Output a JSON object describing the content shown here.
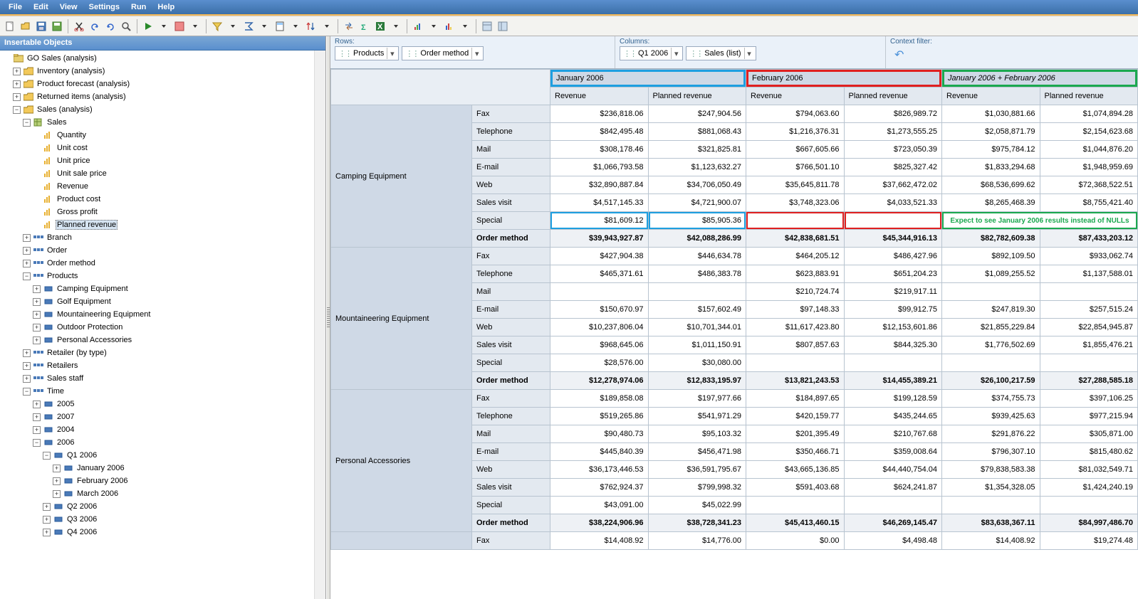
{
  "menu": [
    "File",
    "Edit",
    "View",
    "Settings",
    "Run",
    "Help"
  ],
  "left_panel_title": "Insertable Objects",
  "tree": [
    {
      "d": 0,
      "exp": "",
      "icon": "pkg",
      "label": "GO Sales (analysis)"
    },
    {
      "d": 1,
      "exp": "+",
      "icon": "folder",
      "label": "Inventory (analysis)"
    },
    {
      "d": 1,
      "exp": "+",
      "icon": "folder",
      "label": "Product forecast (analysis)"
    },
    {
      "d": 1,
      "exp": "+",
      "icon": "folder",
      "label": "Returned items (analysis)"
    },
    {
      "d": 1,
      "exp": "-",
      "icon": "folder",
      "label": "Sales (analysis)"
    },
    {
      "d": 2,
      "exp": "-",
      "icon": "cube",
      "label": "Sales"
    },
    {
      "d": 3,
      "exp": "",
      "icon": "measure",
      "label": "Quantity"
    },
    {
      "d": 3,
      "exp": "",
      "icon": "measure",
      "label": "Unit cost"
    },
    {
      "d": 3,
      "exp": "",
      "icon": "measure",
      "label": "Unit price"
    },
    {
      "d": 3,
      "exp": "",
      "icon": "measure",
      "label": "Unit sale price"
    },
    {
      "d": 3,
      "exp": "",
      "icon": "measure",
      "label": "Revenue"
    },
    {
      "d": 3,
      "exp": "",
      "icon": "measure",
      "label": "Product cost"
    },
    {
      "d": 3,
      "exp": "",
      "icon": "measure",
      "label": "Gross profit"
    },
    {
      "d": 3,
      "exp": "",
      "icon": "measure",
      "label": "Planned revenue",
      "selected": true
    },
    {
      "d": 2,
      "exp": "+",
      "icon": "dim",
      "label": "Branch"
    },
    {
      "d": 2,
      "exp": "+",
      "icon": "dim",
      "label": "Order"
    },
    {
      "d": 2,
      "exp": "+",
      "icon": "dim",
      "label": "Order method"
    },
    {
      "d": 2,
      "exp": "-",
      "icon": "dim",
      "label": "Products"
    },
    {
      "d": 3,
      "exp": "+",
      "icon": "member",
      "label": "Camping Equipment"
    },
    {
      "d": 3,
      "exp": "+",
      "icon": "member",
      "label": "Golf Equipment"
    },
    {
      "d": 3,
      "exp": "+",
      "icon": "member",
      "label": "Mountaineering Equipment"
    },
    {
      "d": 3,
      "exp": "+",
      "icon": "member",
      "label": "Outdoor Protection"
    },
    {
      "d": 3,
      "exp": "+",
      "icon": "member",
      "label": "Personal Accessories"
    },
    {
      "d": 2,
      "exp": "+",
      "icon": "dim",
      "label": "Retailer (by type)"
    },
    {
      "d": 2,
      "exp": "+",
      "icon": "dim",
      "label": "Retailers"
    },
    {
      "d": 2,
      "exp": "+",
      "icon": "dim",
      "label": "Sales staff"
    },
    {
      "d": 2,
      "exp": "-",
      "icon": "dim",
      "label": "Time"
    },
    {
      "d": 3,
      "exp": "+",
      "icon": "member",
      "label": "2005"
    },
    {
      "d": 3,
      "exp": "+",
      "icon": "member",
      "label": "2007"
    },
    {
      "d": 3,
      "exp": "+",
      "icon": "member",
      "label": "2004"
    },
    {
      "d": 3,
      "exp": "-",
      "icon": "member",
      "label": "2006"
    },
    {
      "d": 4,
      "exp": "-",
      "icon": "member",
      "label": "Q1 2006"
    },
    {
      "d": 5,
      "exp": "+",
      "icon": "member",
      "label": "January 2006"
    },
    {
      "d": 5,
      "exp": "+",
      "icon": "member",
      "label": "February 2006"
    },
    {
      "d": 5,
      "exp": "+",
      "icon": "member",
      "label": "March 2006"
    },
    {
      "d": 4,
      "exp": "+",
      "icon": "member",
      "label": "Q2 2006"
    },
    {
      "d": 4,
      "exp": "+",
      "icon": "member",
      "label": "Q3 2006"
    },
    {
      "d": 4,
      "exp": "+",
      "icon": "member",
      "label": "Q4 2006"
    }
  ],
  "dropbar": {
    "rows_label": "Rows:",
    "cols_label": "Columns:",
    "ctx_label": "Context filter:",
    "rows": [
      "Products",
      "Order method"
    ],
    "cols": [
      "Q1 2006",
      "Sales (list)"
    ]
  },
  "months": [
    "January 2006",
    "February 2006",
    "January 2006  +  February 2006"
  ],
  "measures": [
    "Revenue",
    "Planned revenue"
  ],
  "note_text": "Expect to see January 2006 results instead of NULLs",
  "groups": [
    {
      "name": "Camping Equipment",
      "rows": [
        {
          "m": "Fax",
          "v": [
            "$236,818.06",
            "$247,904.56",
            "$794,063.60",
            "$826,989.72",
            "$1,030,881.66",
            "$1,074,894.28"
          ]
        },
        {
          "m": "Telephone",
          "v": [
            "$842,495.48",
            "$881,068.43",
            "$1,216,376.31",
            "$1,273,555.25",
            "$2,058,871.79",
            "$2,154,623.68"
          ]
        },
        {
          "m": "Mail",
          "v": [
            "$308,178.46",
            "$321,825.81",
            "$667,605.66",
            "$723,050.39",
            "$975,784.12",
            "$1,044,876.20"
          ]
        },
        {
          "m": "E-mail",
          "v": [
            "$1,066,793.58",
            "$1,123,632.27",
            "$766,501.10",
            "$825,327.42",
            "$1,833,294.68",
            "$1,948,959.69"
          ]
        },
        {
          "m": "Web",
          "v": [
            "$32,890,887.84",
            "$34,706,050.49",
            "$35,645,811.78",
            "$37,662,472.02",
            "$68,536,699.62",
            "$72,368,522.51"
          ]
        },
        {
          "m": "Sales visit",
          "v": [
            "$4,517,145.33",
            "$4,721,900.07",
            "$3,748,323.06",
            "$4,033,521.33",
            "$8,265,468.39",
            "$8,755,421.40"
          ]
        },
        {
          "m": "Special",
          "v": [
            "$81,609.12",
            "$85,905.36",
            "",
            "",
            "",
            ""
          ],
          "hl": true
        }
      ],
      "total": {
        "m": "Order method",
        "v": [
          "$39,943,927.87",
          "$42,088,286.99",
          "$42,838,681.51",
          "$45,344,916.13",
          "$82,782,609.38",
          "$87,433,203.12"
        ]
      }
    },
    {
      "name": "Mountaineering Equipment",
      "rows": [
        {
          "m": "Fax",
          "v": [
            "$427,904.38",
            "$446,634.78",
            "$464,205.12",
            "$486,427.96",
            "$892,109.50",
            "$933,062.74"
          ]
        },
        {
          "m": "Telephone",
          "v": [
            "$465,371.61",
            "$486,383.78",
            "$623,883.91",
            "$651,204.23",
            "$1,089,255.52",
            "$1,137,588.01"
          ]
        },
        {
          "m": "Mail",
          "v": [
            "",
            "",
            "$210,724.74",
            "$219,917.11",
            "",
            ""
          ]
        },
        {
          "m": "E-mail",
          "v": [
            "$150,670.97",
            "$157,602.49",
            "$97,148.33",
            "$99,912.75",
            "$247,819.30",
            "$257,515.24"
          ]
        },
        {
          "m": "Web",
          "v": [
            "$10,237,806.04",
            "$10,701,344.01",
            "$11,617,423.80",
            "$12,153,601.86",
            "$21,855,229.84",
            "$22,854,945.87"
          ]
        },
        {
          "m": "Sales visit",
          "v": [
            "$968,645.06",
            "$1,011,150.91",
            "$807,857.63",
            "$844,325.30",
            "$1,776,502.69",
            "$1,855,476.21"
          ]
        },
        {
          "m": "Special",
          "v": [
            "$28,576.00",
            "$30,080.00",
            "",
            "",
            "",
            ""
          ]
        }
      ],
      "total": {
        "m": "Order method",
        "v": [
          "$12,278,974.06",
          "$12,833,195.97",
          "$13,821,243.53",
          "$14,455,389.21",
          "$26,100,217.59",
          "$27,288,585.18"
        ]
      }
    },
    {
      "name": "Personal Accessories",
      "rows": [
        {
          "m": "Fax",
          "v": [
            "$189,858.08",
            "$197,977.66",
            "$184,897.65",
            "$199,128.59",
            "$374,755.73",
            "$397,106.25"
          ]
        },
        {
          "m": "Telephone",
          "v": [
            "$519,265.86",
            "$541,971.29",
            "$420,159.77",
            "$435,244.65",
            "$939,425.63",
            "$977,215.94"
          ]
        },
        {
          "m": "Mail",
          "v": [
            "$90,480.73",
            "$95,103.32",
            "$201,395.49",
            "$210,767.68",
            "$291,876.22",
            "$305,871.00"
          ]
        },
        {
          "m": "E-mail",
          "v": [
            "$445,840.39",
            "$456,471.98",
            "$350,466.71",
            "$359,008.64",
            "$796,307.10",
            "$815,480.62"
          ]
        },
        {
          "m": "Web",
          "v": [
            "$36,173,446.53",
            "$36,591,795.67",
            "$43,665,136.85",
            "$44,440,754.04",
            "$79,838,583.38",
            "$81,032,549.71"
          ]
        },
        {
          "m": "Sales visit",
          "v": [
            "$762,924.37",
            "$799,998.32",
            "$591,403.68",
            "$624,241.87",
            "$1,354,328.05",
            "$1,424,240.19"
          ]
        },
        {
          "m": "Special",
          "v": [
            "$43,091.00",
            "$45,022.99",
            "",
            "",
            "",
            ""
          ]
        }
      ],
      "total": {
        "m": "Order method",
        "v": [
          "$38,224,906.96",
          "$38,728,341.23",
          "$45,413,460.15",
          "$46,269,145.47",
          "$83,638,367.11",
          "$84,997,486.70"
        ]
      }
    },
    {
      "name": "",
      "rows": [
        {
          "m": "Fax",
          "v": [
            "$14,408.92",
            "$14,776.00",
            "$0.00",
            "$4,498.48",
            "$14,408.92",
            "$19,274.48"
          ]
        }
      ]
    }
  ]
}
